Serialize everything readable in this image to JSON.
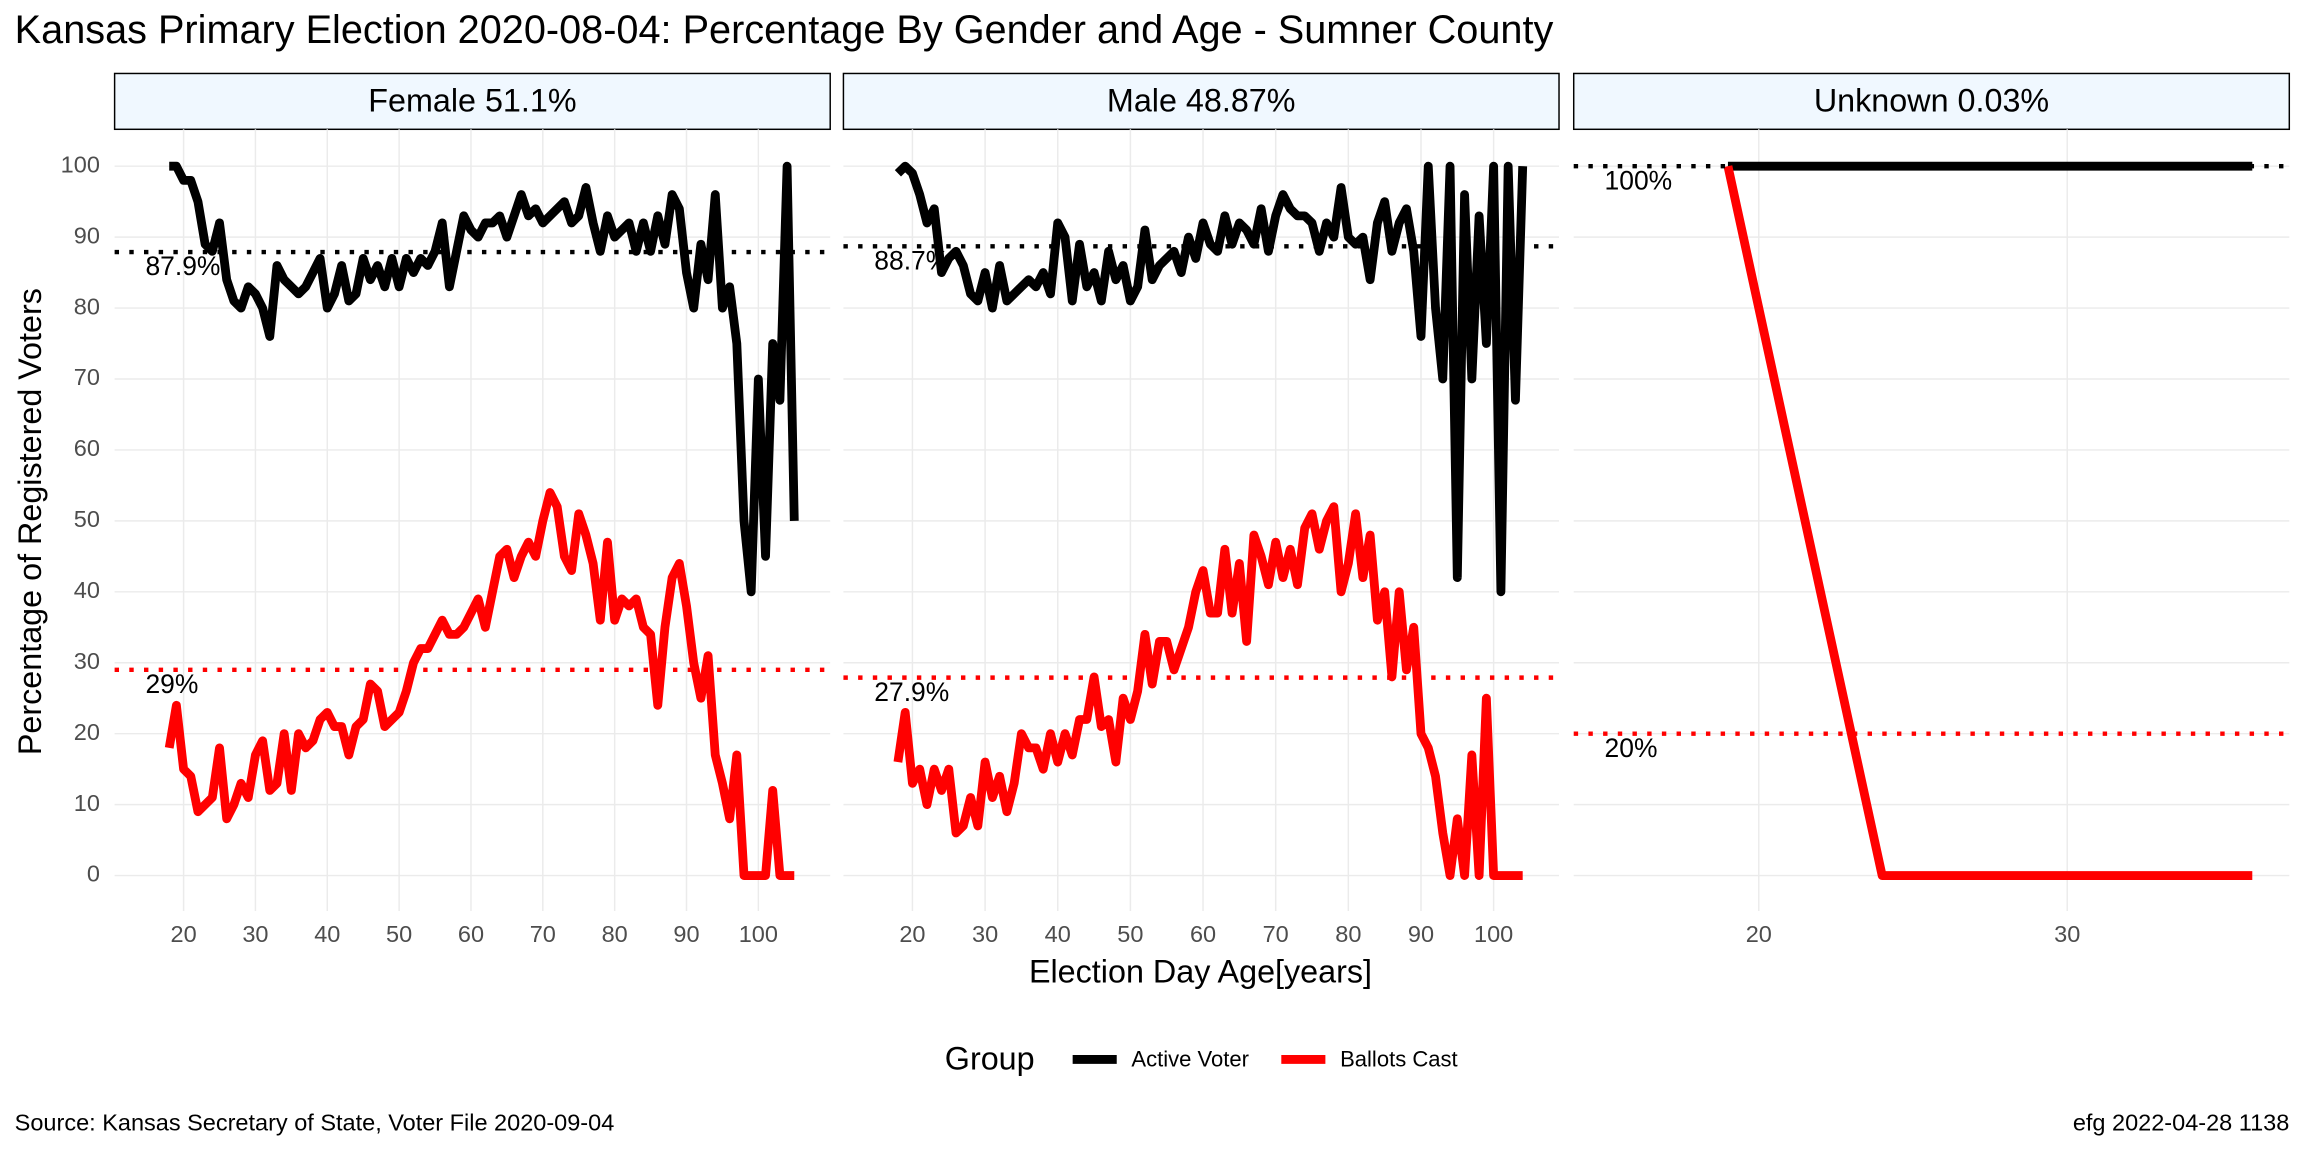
{
  "title": "Kansas Primary Election 2020-08-04:  Percentage By Gender and Age - Sumner County",
  "x_label": "Election Day Age[years]",
  "y_label": "Percentage of Registered Voters",
  "legend_title": "Group",
  "source": "Source:  Kansas Secretary of State, Voter File  2020-09-04",
  "stamp": "efg 2022-04-28 1138",
  "chart_data": [
    {
      "type": "line",
      "title": "Female 51.1%",
      "x": [
        18,
        19,
        20,
        21,
        22,
        23,
        24,
        25,
        26,
        27,
        28,
        29,
        30,
        31,
        32,
        33,
        34,
        35,
        36,
        37,
        38,
        39,
        40,
        41,
        42,
        43,
        44,
        45,
        46,
        47,
        48,
        49,
        50,
        51,
        52,
        53,
        54,
        55,
        56,
        57,
        58,
        59,
        60,
        61,
        62,
        63,
        64,
        65,
        66,
        67,
        68,
        69,
        70,
        71,
        72,
        73,
        74,
        75,
        76,
        77,
        78,
        79,
        80,
        81,
        82,
        83,
        84,
        85,
        86,
        87,
        88,
        89,
        90,
        91,
        92,
        93,
        94,
        95,
        96,
        97,
        98,
        99,
        100,
        101,
        102,
        103,
        104,
        105
      ],
      "series": [
        {
          "name": "Active Voter",
          "color": "#000000",
          "values": [
            100,
            100,
            98,
            98,
            95,
            89,
            88,
            92,
            84,
            81,
            80,
            83,
            82,
            80,
            76,
            86,
            84,
            83,
            82,
            83,
            85,
            87,
            80,
            82,
            86,
            81,
            82,
            87,
            84,
            86,
            83,
            87,
            83,
            87,
            85,
            87,
            86,
            88,
            92,
            83,
            88,
            93,
            91,
            90,
            92,
            92,
            93,
            90,
            93,
            96,
            93,
            94,
            92,
            93,
            94,
            95,
            92,
            93,
            97,
            92,
            88,
            93,
            90,
            91,
            92,
            88,
            92,
            88,
            93,
            89,
            96,
            94,
            85,
            80,
            89,
            84,
            96,
            80,
            83,
            75,
            50,
            40,
            70,
            45,
            75,
            67,
            100,
            50
          ]
        },
        {
          "name": "Ballots Cast",
          "color": "#ff0000",
          "values": [
            18,
            24,
            15,
            14,
            9,
            10,
            11,
            18,
            8,
            10,
            13,
            11,
            17,
            19,
            12,
            13,
            20,
            12,
            20,
            18,
            19,
            22,
            23,
            21,
            21,
            17,
            21,
            22,
            27,
            26,
            21,
            22,
            23,
            26,
            30,
            32,
            32,
            34,
            36,
            34,
            34,
            35,
            37,
            39,
            35,
            40,
            45,
            46,
            42,
            45,
            47,
            45,
            50,
            54,
            52,
            45,
            43,
            51,
            48,
            44,
            36,
            47,
            36,
            39,
            38,
            39,
            35,
            34,
            24,
            35,
            42,
            44,
            38,
            30,
            25,
            31,
            17,
            13,
            8,
            17,
            0,
            0,
            0,
            0,
            12,
            0,
            0,
            0
          ]
        }
      ],
      "reference_lines": [
        {
          "value": 87.9,
          "label": "87.9%",
          "color": "#000000"
        },
        {
          "value": 29,
          "label": "29%",
          "color": "#ff0000"
        }
      ],
      "xlim": [
        10.4,
        110
      ],
      "ylim": [
        -5,
        105.2
      ],
      "xticks": [
        20,
        30,
        40,
        50,
        60,
        70,
        80,
        90,
        100
      ],
      "yticks": [
        0,
        10,
        20,
        30,
        40,
        50,
        60,
        70,
        80,
        90,
        100
      ]
    },
    {
      "type": "line",
      "title": "Male 48.87%",
      "x": [
        18,
        19,
        20,
        21,
        22,
        23,
        24,
        25,
        26,
        27,
        28,
        29,
        30,
        31,
        32,
        33,
        34,
        35,
        36,
        37,
        38,
        39,
        40,
        41,
        42,
        43,
        44,
        45,
        46,
        47,
        48,
        49,
        50,
        51,
        52,
        53,
        54,
        55,
        56,
        57,
        58,
        59,
        60,
        61,
        62,
        63,
        64,
        65,
        66,
        67,
        68,
        69,
        70,
        71,
        72,
        73,
        74,
        75,
        76,
        77,
        78,
        79,
        80,
        81,
        82,
        83,
        84,
        85,
        86,
        87,
        88,
        89,
        90,
        91,
        92,
        93,
        94,
        95,
        96,
        97,
        98,
        99,
        100,
        101,
        102,
        103,
        104
      ],
      "series": [
        {
          "color": "#000000",
          "values": [
            99,
            100,
            99,
            96,
            92,
            94,
            85,
            87,
            88,
            86,
            82,
            81,
            85,
            80,
            86,
            81,
            82,
            83,
            84,
            83,
            85,
            82,
            92,
            90,
            81,
            89,
            83,
            85,
            81,
            88,
            84,
            86,
            81,
            83,
            91,
            84,
            86,
            87,
            88,
            85,
            90,
            87,
            92,
            89,
            88,
            93,
            89,
            92,
            91,
            89,
            94,
            88,
            93,
            96,
            94,
            93,
            93,
            92,
            88,
            92,
            90,
            97,
            90,
            89,
            90,
            84,
            92,
            95,
            88,
            92,
            94,
            88,
            76,
            100,
            80,
            70,
            100,
            42,
            96,
            70,
            93,
            75,
            100,
            40,
            100,
            67,
            100
          ]
        },
        {
          "color": "#ff0000",
          "values": [
            16,
            23,
            13,
            15,
            10,
            15,
            12,
            15,
            6,
            7,
            11,
            7,
            16,
            11,
            14,
            9,
            13,
            20,
            18,
            18,
            15,
            20,
            16,
            20,
            17,
            22,
            22,
            28,
            21,
            22,
            16,
            25,
            22,
            26,
            34,
            27,
            33,
            33,
            29,
            32,
            35,
            40,
            43,
            37,
            37,
            46,
            37,
            44,
            33,
            48,
            45,
            41,
            47,
            42,
            46,
            41,
            49,
            51,
            46,
            50,
            52,
            40,
            44,
            51,
            42,
            48,
            36,
            40,
            28,
            40,
            29,
            35,
            20,
            18,
            14,
            6,
            0,
            8,
            0,
            17,
            0,
            25,
            0,
            0,
            0,
            0,
            0
          ]
        }
      ],
      "reference_lines": [
        {
          "value": 88.7,
          "label": "88.7%",
          "color": "#000000"
        },
        {
          "value": 27.9,
          "label": "27.9%",
          "color": "#ff0000"
        }
      ],
      "xlim": [
        10.5,
        109
      ],
      "ylim": [
        -5,
        105.2
      ],
      "xticks": [
        20,
        30,
        40,
        50,
        60,
        70,
        80,
        90,
        100
      ],
      "yticks": [
        0,
        10,
        20,
        30,
        40,
        50,
        60,
        70,
        80,
        90,
        100
      ]
    },
    {
      "type": "line",
      "title": "Unknown 0.03%",
      "x": [
        19,
        24,
        36
      ],
      "series": [
        {
          "color": "#000000",
          "values": [
            100,
            100,
            100
          ]
        },
        {
          "color": "#ff0000",
          "values": [
            100,
            0,
            0
          ]
        }
      ],
      "reference_lines": [
        {
          "value": 100,
          "label": "100%",
          "color": "#000000"
        },
        {
          "value": 20,
          "label": "20%",
          "color": "#ff0000"
        }
      ],
      "xlim": [
        14,
        37.2
      ],
      "ylim": [
        -5,
        105.2
      ],
      "xticks": [
        20,
        30
      ],
      "yticks": [
        0,
        10,
        20,
        30,
        40,
        50,
        60,
        70,
        80,
        90,
        100
      ]
    }
  ]
}
